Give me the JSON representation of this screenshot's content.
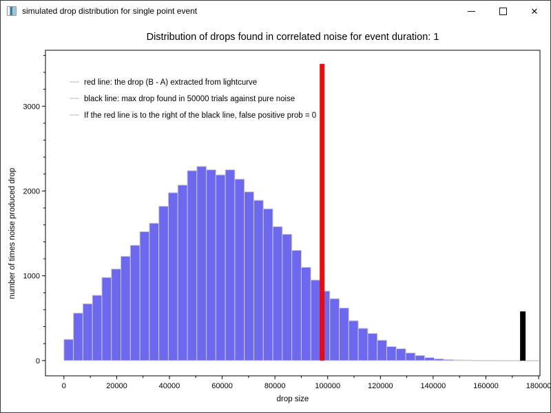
{
  "window": {
    "title": "simulated drop distribution for single point event",
    "controls": {
      "minimize": "minimize",
      "maximize": "maximize",
      "close": "✕"
    }
  },
  "chart_data": {
    "type": "bar",
    "subtype": "histogram",
    "title": "Distribution of drops found in correlated noise for event duration: 1",
    "xlabel": "drop size",
    "ylabel": "number of times noise produced drop",
    "grid": false,
    "xlim": [
      -7000,
      180500
    ],
    "ylim": [
      -180,
      3660
    ],
    "x_ticks": [
      0,
      20000,
      40000,
      60000,
      80000,
      100000,
      120000,
      140000,
      160000,
      180000
    ],
    "x_tick_labels": [
      "0",
      "20000",
      "40000",
      "60000",
      "80000",
      "100000",
      "120000",
      "140000",
      "160000",
      "180000"
    ],
    "y_ticks": [
      0,
      1000,
      2000,
      3000
    ],
    "y_tick_labels": [
      "0",
      "1000",
      "2000",
      "3000"
    ],
    "x_minor_step": 10000,
    "y_minor_step": 200,
    "bin_start": 0,
    "bin_width": 3600,
    "bin_counts": [
      250,
      560,
      670,
      770,
      980,
      1080,
      1230,
      1360,
      1520,
      1620,
      1820,
      1980,
      2070,
      2240,
      2290,
      2250,
      2190,
      2250,
      2140,
      1990,
      1890,
      1790,
      1580,
      1490,
      1300,
      1100,
      950,
      820,
      730,
      620,
      470,
      380,
      320,
      240,
      165,
      140,
      90,
      60,
      35,
      20,
      12,
      8,
      5,
      3,
      2,
      2,
      1,
      1,
      1,
      0
    ],
    "bar_color": "#6c68f0",
    "bar_edge_color": "#cccccc",
    "red_line": {
      "x": 97900,
      "y0": 0,
      "y1": 3500,
      "color": "#ee0a0a"
    },
    "black_line": {
      "x": 174000,
      "y0": 0,
      "y1": 580,
      "color": "#000000"
    },
    "legend": {
      "position": "upper-left",
      "swatch_color": "#c9c9c9",
      "entries": [
        "red line: the drop (B - A) extracted from lightcurve",
        "black line: max drop found in 50000 trials against pure noise",
        "If the red line is to the right of the black line, false positive prob = 0"
      ]
    }
  }
}
